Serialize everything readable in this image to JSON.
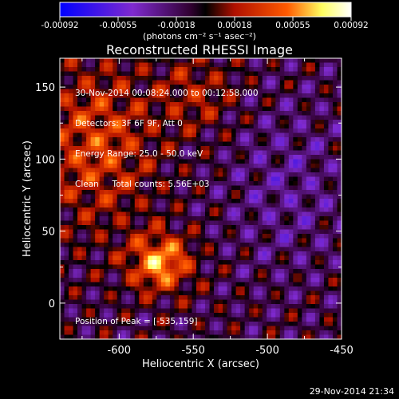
{
  "colorbar": {
    "ticks": [
      "-0.00092",
      "-0.00055",
      "-0.00018",
      "0.00018",
      "0.00055",
      "0.00092"
    ],
    "units_label": "(photons cm⁻² s⁻¹ asec⁻²)"
  },
  "plot": {
    "title": "Reconstructed RHESSI Image",
    "xlabel": "Heliocentric X (arcsec)",
    "ylabel": "Heliocentric Y (arcsec)",
    "xticks": [
      "-600",
      "-550",
      "-500",
      "-450"
    ],
    "yticks": [
      "150",
      "100",
      "50",
      "0"
    ],
    "info_lines": [
      "30-Nov-2014 00:08:24.000 to 00:12:58.000",
      "Detectors: 3F 6F 9F, Att 0",
      "Energy Range: 25.0 - 50.0 keV",
      "Clean     Total counts: 5.56E+03"
    ],
    "peak_text": "Position of Peak = [-535,159]"
  },
  "footer": {
    "timestamp": "29-Nov-2014 21:34"
  },
  "chart_data": {
    "type": "heatmap",
    "title": "Reconstructed RHESSI Image",
    "xlabel": "Heliocentric X (arcsec)",
    "ylabel": "Heliocentric Y (arcsec)",
    "xlim": [
      -640,
      -450
    ],
    "ylim": [
      -25,
      170
    ],
    "colorbar_range": [
      -0.00092,
      0.00092
    ],
    "colormap": [
      "#0000ff",
      "#7f2acf",
      "#400040",
      "#000000",
      "#b01000",
      "#ff5a00",
      "#ffff60",
      "#ffffff"
    ],
    "peak_position": [
      -535,
      159
    ]
  }
}
